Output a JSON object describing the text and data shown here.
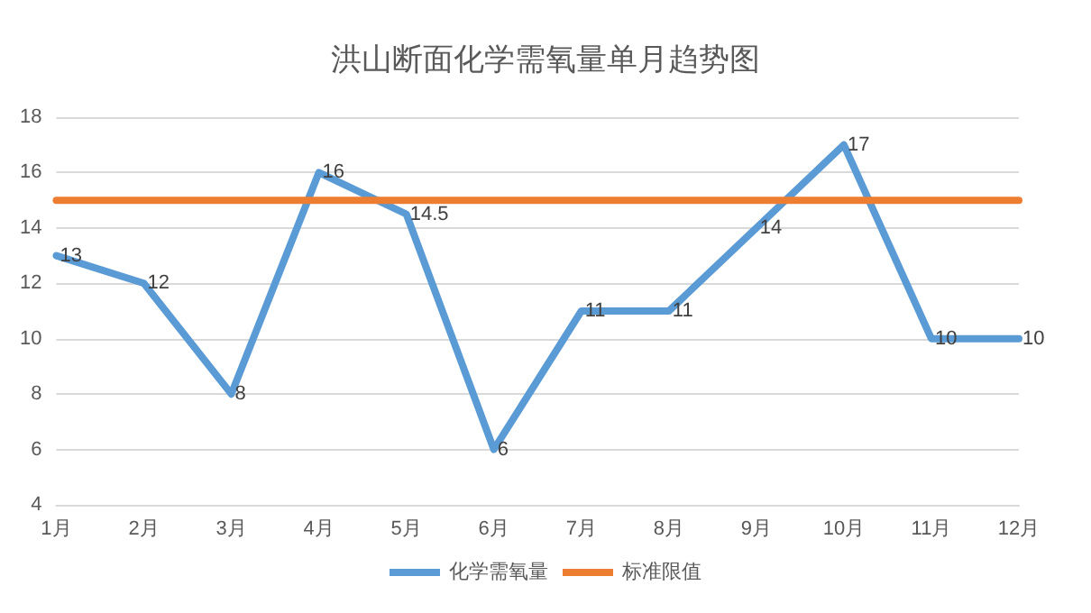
{
  "chart_data": {
    "type": "line",
    "title": "洪山断面化学需氧量单月趋势图",
    "categories": [
      "1月",
      "2月",
      "3月",
      "4月",
      "5月",
      "6月",
      "7月",
      "8月",
      "9月",
      "10月",
      "11月",
      "12月"
    ],
    "series": [
      {
        "name": "化学需氧量",
        "color": "#5b9bd5",
        "values": [
          13,
          12,
          8,
          16,
          14.5,
          6,
          11,
          11,
          14,
          17,
          10,
          10
        ],
        "value_labels": [
          "13",
          "12",
          "8",
          "16",
          "14.5",
          "6",
          "11",
          "11",
          "14",
          "17",
          "10",
          "10"
        ]
      },
      {
        "name": "标准限值",
        "color": "#ed7d31",
        "values": [
          15,
          15,
          15,
          15,
          15,
          15,
          15,
          15,
          15,
          15,
          15,
          15
        ]
      }
    ],
    "ylim": [
      4,
      18
    ],
    "yticks": [
      4,
      6,
      8,
      10,
      12,
      14,
      16,
      18
    ],
    "grid": "y",
    "legend": "bottom",
    "marker": "none",
    "line_style": "solid"
  }
}
